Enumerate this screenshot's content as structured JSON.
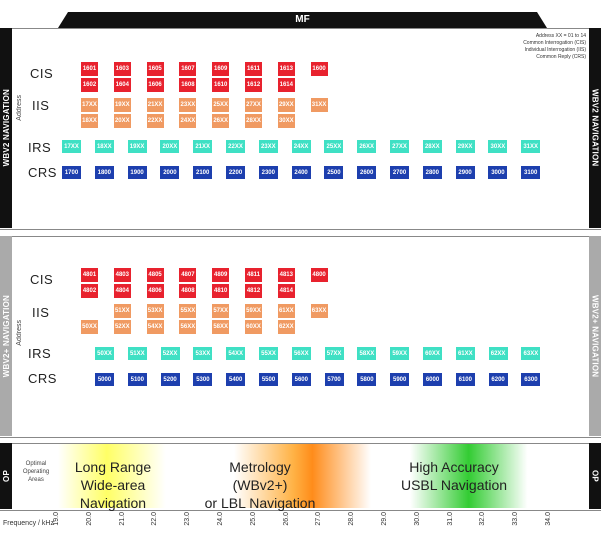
{
  "header": {
    "title": "MF"
  },
  "sidebar": {
    "wbv2": "WBV2 NAVIGATION",
    "wbv2plus": "WBV2+ NAVIGATION",
    "op": "OP"
  },
  "axis_address": "Address",
  "legend": [
    "Address XX = 01 to 14",
    "Common Interrogation (CIS)",
    "Individual Interrogation (IIS)",
    "Common Reply (CRS)"
  ],
  "row_labels": {
    "cis": "CIS",
    "iis": "IIS",
    "irs": "IRS",
    "crs": "CRS"
  },
  "colors": {
    "cis": "#e8222e",
    "iis": "#f09a62",
    "irs": "#3fe0c4",
    "crs": "#1d3fae"
  },
  "wbv2": {
    "cis": [
      [
        "1601",
        "1602"
      ],
      [
        "1603",
        "1604"
      ],
      [
        "1605",
        "1606"
      ],
      [
        "1607",
        "1608"
      ],
      [
        "1609",
        "1610"
      ],
      [
        "1611",
        "1612"
      ],
      [
        "1613",
        "1614"
      ],
      [
        "1600"
      ]
    ],
    "iis": [
      [
        "17XX",
        "18XX"
      ],
      [
        "19XX",
        "20XX"
      ],
      [
        "21XX",
        "22XX"
      ],
      [
        "23XX",
        "24XX"
      ],
      [
        "25XX",
        "26XX"
      ],
      [
        "27XX",
        "28XX"
      ],
      [
        "29XX",
        "30XX"
      ],
      [
        "31XX"
      ]
    ],
    "irs": [
      "17XX",
      "18XX",
      "19XX",
      "20XX",
      "21XX",
      "22XX",
      "23XX",
      "24XX",
      "25XX",
      "26XX",
      "27XX",
      "28XX",
      "29XX",
      "30XX",
      "31XX"
    ],
    "crs": [
      "1700",
      "1800",
      "1900",
      "2000",
      "2100",
      "2200",
      "2300",
      "2400",
      "2500",
      "2600",
      "2700",
      "2800",
      "2900",
      "3000",
      "3100"
    ]
  },
  "wbv2plus": {
    "cis": [
      [
        "4801",
        "4802"
      ],
      [
        "4803",
        "4804"
      ],
      [
        "4805",
        "4806"
      ],
      [
        "4807",
        "4808"
      ],
      [
        "4809",
        "4810"
      ],
      [
        "4811",
        "4812"
      ],
      [
        "4813",
        "4814"
      ],
      [
        "4800"
      ]
    ],
    "iis": [
      [
        "",
        "50XX"
      ],
      [
        "51XX",
        "52XX"
      ],
      [
        "53XX",
        "54XX"
      ],
      [
        "55XX",
        "56XX"
      ],
      [
        "57XX",
        "58XX"
      ],
      [
        "59XX",
        "60XX"
      ],
      [
        "61XX",
        "62XX"
      ],
      [
        "63XX"
      ]
    ],
    "irs": [
      "50XX",
      "51XX",
      "52XX",
      "53XX",
      "54XX",
      "55XX",
      "56XX",
      "57XX",
      "58XX",
      "59XX",
      "60XX",
      "61XX",
      "62XX",
      "63XX"
    ],
    "crs": [
      "5000",
      "5100",
      "5200",
      "5300",
      "5400",
      "5500",
      "5600",
      "5700",
      "5800",
      "5900",
      "6000",
      "6100",
      "6200",
      "6300"
    ]
  },
  "op": {
    "label": "Optimal\nOperating\nAreas",
    "areas": [
      {
        "line1": "Long Range",
        "line2": "Wide-area Navigation"
      },
      {
        "line1": "Metrology (WBv2+)",
        "line2": "or LBL Navigation"
      },
      {
        "line1": "High Accuracy",
        "line2": "USBL Navigation"
      }
    ]
  },
  "frequency": {
    "label": "Frequency / kHz",
    "ticks": [
      "19.0",
      "20.0",
      "21.0",
      "22.0",
      "23.0",
      "24.0",
      "25.0",
      "26.0",
      "27.0",
      "28.0",
      "29.0",
      "30.0",
      "31.0",
      "32.0",
      "33.0",
      "34.0"
    ]
  }
}
